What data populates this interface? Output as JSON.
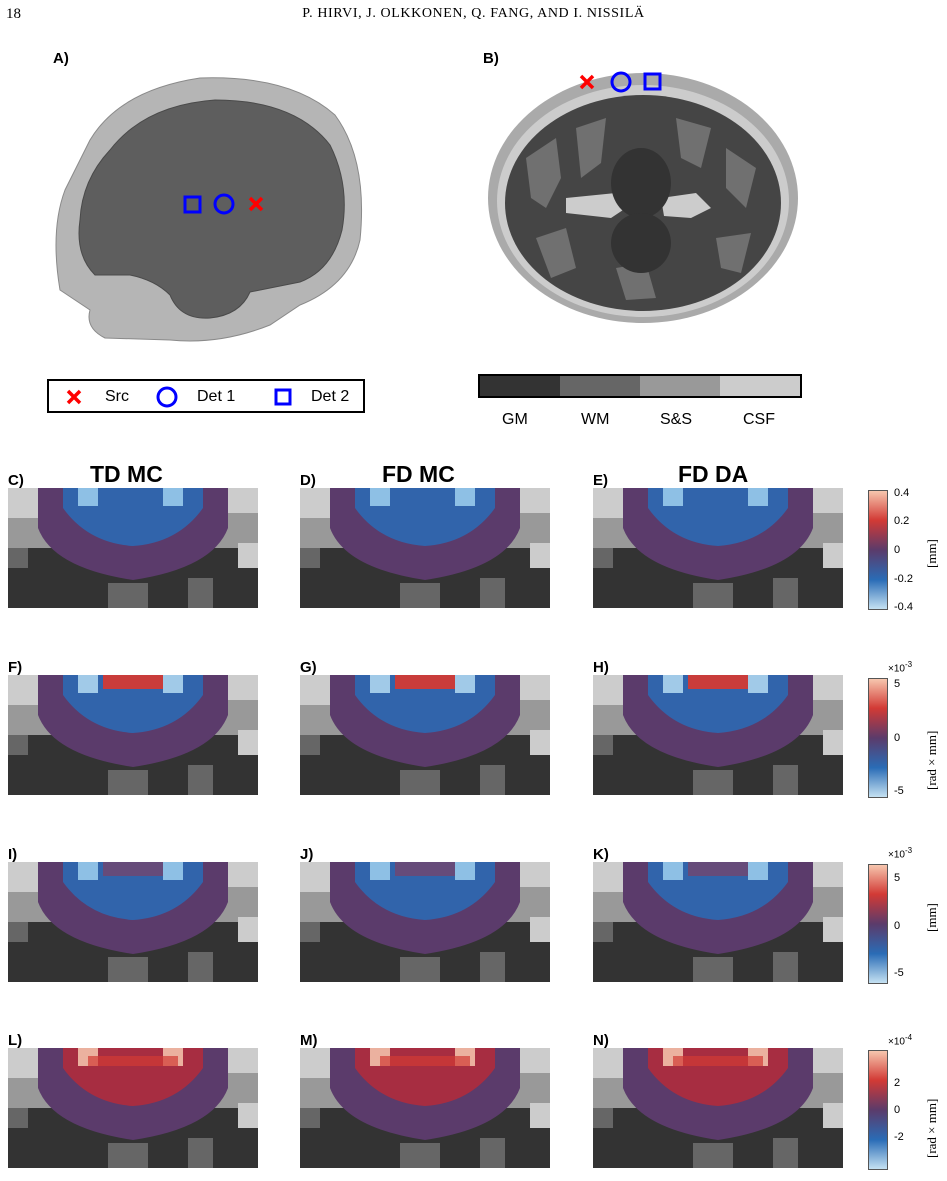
{
  "header": {
    "page_number": "18",
    "authors": "P. HIRVI, J. OLKKONEN, Q. FANG, AND I. NISSILÄ"
  },
  "panel_labels": [
    "A)",
    "B)",
    "C)",
    "D)",
    "E)",
    "F)",
    "G)",
    "H)",
    "I)",
    "J)",
    "K)",
    "L)",
    "M)",
    "N)"
  ],
  "column_titles": [
    "TD MC",
    "FD MC",
    "FD DA"
  ],
  "legend": {
    "items": [
      {
        "marker": "x-cross",
        "color": "#ff0000",
        "label": "Src"
      },
      {
        "marker": "circle",
        "color": "#0000ff",
        "label": "Det 1"
      },
      {
        "marker": "square",
        "color": "#0000ff",
        "label": "Det 2"
      }
    ]
  },
  "tissue_scale": {
    "segments": [
      {
        "label": "GM",
        "color": "#333333"
      },
      {
        "label": "WM",
        "color": "#666666"
      },
      {
        "label": "S&S",
        "color": "#999999"
      },
      {
        "label": "CSF",
        "color": "#cccccc"
      }
    ]
  },
  "colorbars": [
    {
      "ticks": [
        "0.4",
        "0.2",
        "0",
        "-0.2",
        "-0.4"
      ],
      "exponent": "",
      "unit": "[mm]"
    },
    {
      "ticks": [
        "5",
        "0",
        "-5"
      ],
      "exponent": "×10",
      "exp_power": "-3",
      "unit": "[rad × mm]"
    },
    {
      "ticks": [
        "5",
        "0",
        "-5"
      ],
      "exponent": "×10",
      "exp_power": "-3",
      "unit": "[mm]"
    },
    {
      "ticks": [
        "2",
        "0",
        "-2"
      ],
      "exponent": "×10",
      "exp_power": "-4",
      "unit": "[rad × mm]"
    }
  ],
  "colors": {
    "source": "#ff0000",
    "detector": "#0000ff",
    "colormap_neg": "#2f6fb3",
    "colormap_zero": "#5b3b6b",
    "colormap_pos": "#c62c2c"
  }
}
